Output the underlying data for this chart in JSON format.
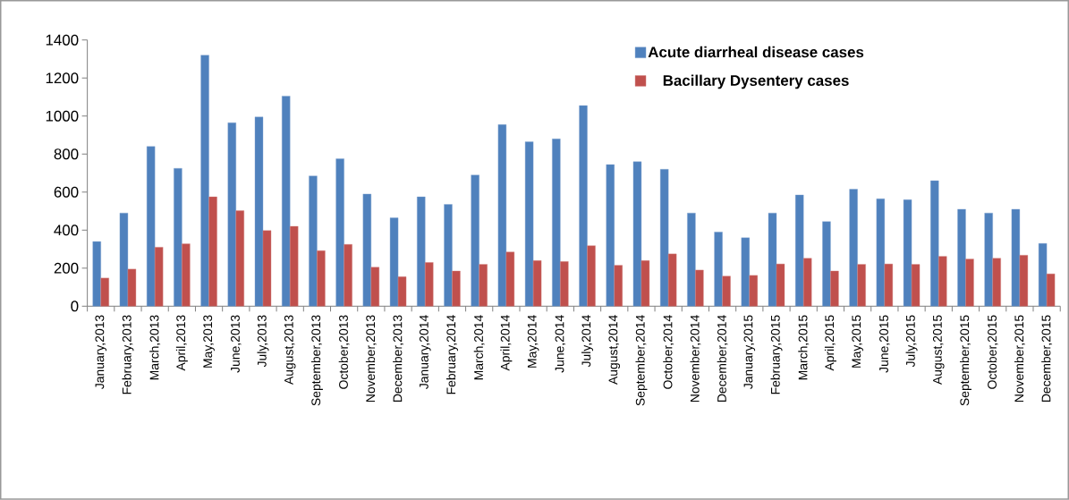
{
  "chart_data": {
    "type": "bar",
    "categories": [
      "January,2013",
      "February,2013",
      "March,2013",
      "April,2013",
      "May,2013",
      "June,2013",
      "July,2013",
      "August,2013",
      "September,2013",
      "October,2013",
      "November,2013",
      "December,2013",
      "January,2014",
      "February,2014",
      "March,2014",
      "April,2014",
      "May,2014",
      "June,2014",
      "July,2014",
      "August,2014",
      "September,2014",
      "October,2014",
      "November,2014",
      "December,2014",
      "January,2015",
      "February,2015",
      "March,2015",
      "April,2015",
      "May,2015",
      "June,2015",
      "July,2015",
      "August,2015",
      "September,2015",
      "October,2015",
      "November,2015",
      "December,2015"
    ],
    "series": [
      {
        "name": "Acute diarrheal disease cases",
        "color": "#4f81bd",
        "values": [
          340,
          490,
          840,
          725,
          1320,
          965,
          995,
          1105,
          685,
          775,
          590,
          465,
          575,
          535,
          690,
          955,
          865,
          880,
          1055,
          745,
          760,
          720,
          490,
          390,
          360,
          490,
          585,
          445,
          615,
          565,
          560,
          660,
          510,
          490,
          510,
          330
        ]
      },
      {
        "name": "Bacillary Dysentery cases",
        "color": "#c0504d",
        "values": [
          148,
          195,
          310,
          328,
          575,
          502,
          398,
          420,
          292,
          325,
          205,
          155,
          230,
          185,
          220,
          285,
          240,
          235,
          318,
          215,
          240,
          275,
          190,
          158,
          162,
          222,
          252,
          185,
          220,
          222,
          220,
          262,
          248,
          252,
          268,
          170
        ]
      }
    ],
    "ylim": [
      0,
      1400
    ],
    "yticks": [
      0,
      200,
      400,
      600,
      800,
      1000,
      1200,
      1400
    ],
    "grid": false,
    "legend": "top right"
  }
}
